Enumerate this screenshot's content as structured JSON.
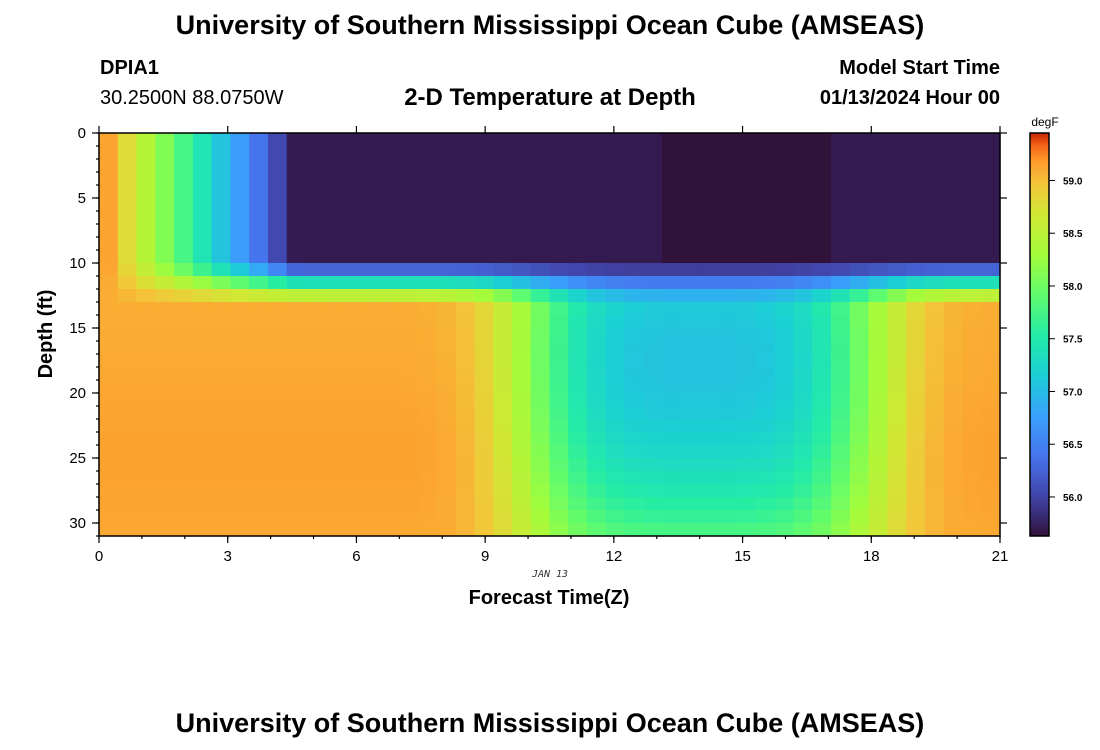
{
  "header": {
    "title": "University of Southern Mississippi Ocean Cube (AMSEAS)",
    "station": "DPIA1",
    "coords": "30.2500N  88.0750W",
    "start_label": "Model Start Time",
    "start_value": "01/13/2024 Hour 00",
    "bottom_title": "University of Southern Mississippi Ocean Cube (AMSEAS)"
  },
  "chart_data": {
    "type": "heatmap",
    "title": "2-D Temperature at Depth",
    "xlabel": "Forecast Time(Z)",
    "ylabel": "Depth (ft)",
    "xlim": [
      0,
      21
    ],
    "ylim": [
      0,
      31
    ],
    "xticks": [
      "0",
      "3",
      "6",
      "9",
      "12",
      "15",
      "18",
      "21"
    ],
    "yticks": [
      "0",
      "5",
      "10",
      "15",
      "20",
      "25",
      "30"
    ],
    "date_label": "JAN 13",
    "colorbar": {
      "unit": "degF",
      "range": [
        55.63,
        59.45
      ],
      "ticks": [
        "56.0",
        "56.5",
        "57.0",
        "57.5",
        "58.0",
        "58.5",
        "59.0"
      ]
    }
  }
}
